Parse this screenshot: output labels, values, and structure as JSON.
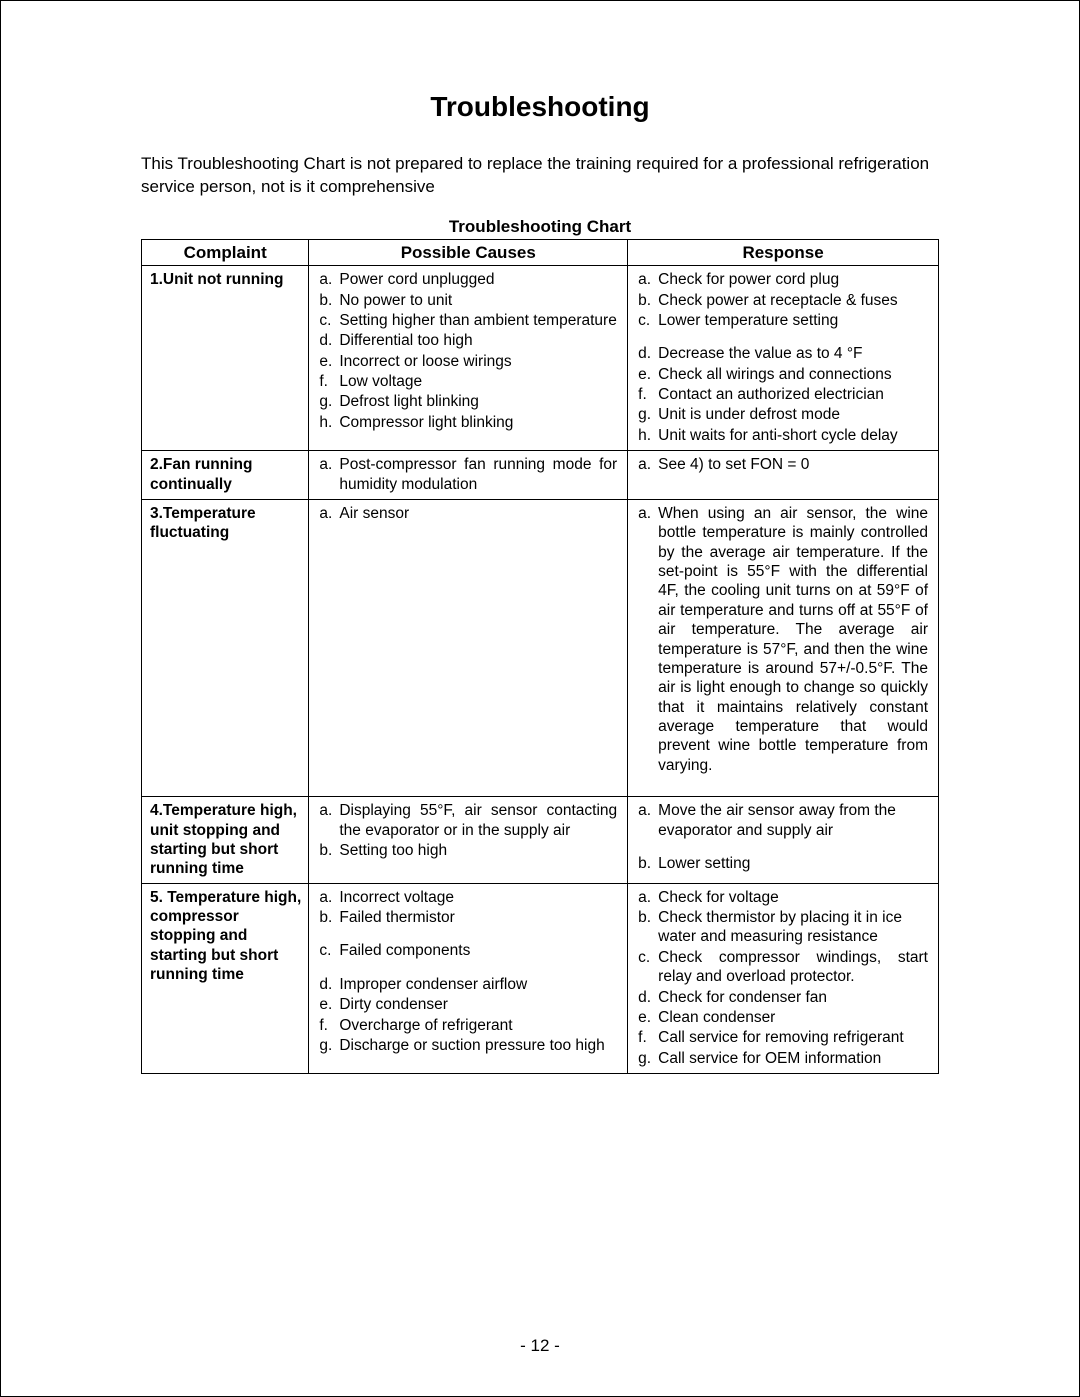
{
  "title": "Troubleshooting",
  "intro": "This Troubleshooting Chart is not prepared to replace the training required for a professional refrigeration service person, not is it comprehensive",
  "chart_caption": "Troubleshooting Chart",
  "headers": {
    "c1": "Complaint",
    "c2": "Possible Causes",
    "c3": "Response"
  },
  "rows": [
    {
      "complaint": "1.Unit not running",
      "causes": [
        "Power cord unplugged",
        "No power to unit",
        "Setting higher than ambient temperature",
        "Differential too high",
        "Incorrect or loose wirings",
        "Low voltage",
        "Defrost light blinking",
        "Compressor light blinking"
      ],
      "causes_justify": [
        false,
        false,
        true,
        false,
        false,
        false,
        false,
        false
      ],
      "responses": [
        "Check for power cord plug",
        "Check power at receptacle & fuses",
        "Lower temperature setting",
        "Decrease the value as to 4 °F",
        "Check all wirings and connections",
        "Contact an authorized electrician",
        "Unit is under defrost mode",
        "Unit waits for anti-short cycle delay"
      ],
      "responses_justify": [
        false,
        false,
        false,
        false,
        false,
        false,
        false,
        false
      ],
      "response_gap_before": [
        false,
        false,
        false,
        true,
        false,
        false,
        false,
        false
      ]
    },
    {
      "complaint": "2.Fan running continually",
      "causes": [
        "Post-compressor fan running mode for humidity modulation"
      ],
      "causes_justify": [
        true
      ],
      "responses": [
        "See 4) to set FON = 0"
      ],
      "responses_justify": [
        false
      ]
    },
    {
      "complaint": "3.Temperature fluctuating",
      "causes": [
        "Air sensor"
      ],
      "causes_justify": [
        false
      ],
      "responses": [
        "When using an air sensor, the wine bottle temperature is mainly controlled by the average air temperature. If the set-point is 55°F with the differential 4F, the cooling unit turns on at 59°F of air temperature and turns off at 55°F of air temperature. The average air temperature is 57°F, and then the wine temperature is around 57+/-0.5°F. The air is light enough to change so quickly that it maintains relatively constant average temperature that would prevent wine bottle temperature from varying."
      ],
      "responses_justify": [
        true
      ],
      "extra_bottom_pad": true
    },
    {
      "complaint": "4.Temperature high, unit stopping and starting but short running time",
      "causes": [
        "Displaying 55°F, air sensor contacting the evaporator or in the supply air",
        "Setting too high"
      ],
      "causes_justify": [
        true,
        false
      ],
      "responses": [
        "Move the air sensor away from the evaporator and supply air",
        "Lower setting"
      ],
      "responses_justify": [
        false,
        false
      ],
      "response_gap_before": [
        false,
        true
      ]
    },
    {
      "complaint": "5. Temperature high, compressor stopping and starting but short running time",
      "causes": [
        "Incorrect voltage",
        "Failed thermistor",
        "Failed components",
        "Improper condenser airflow",
        "Dirty condenser",
        "Overcharge of refrigerant",
        "Discharge or suction pressure too high"
      ],
      "causes_justify": [
        false,
        false,
        false,
        false,
        false,
        false,
        true
      ],
      "cause_gap_before": [
        false,
        false,
        true,
        true,
        false,
        false,
        false
      ],
      "responses": [
        "Check for voltage",
        "Check thermistor by placing it in ice water and measuring resistance",
        "Check compressor windings, start relay and overload protector.",
        "Check for condenser fan",
        "Clean condenser",
        "Call service for removing refrigerant",
        "Call service for OEM information"
      ],
      "responses_justify": [
        false,
        false,
        true,
        false,
        false,
        false,
        false
      ]
    }
  ],
  "page_number": "- 12 -",
  "letters": [
    "a.",
    "b.",
    "c.",
    "d.",
    "e.",
    "f.",
    "g.",
    "h."
  ]
}
